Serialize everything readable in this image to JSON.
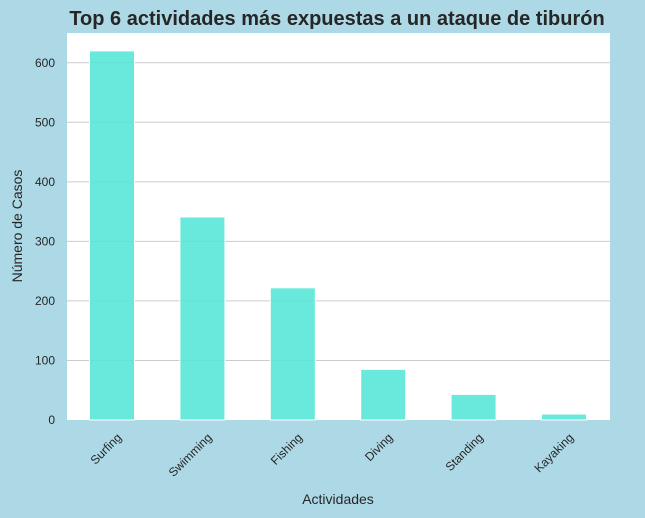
{
  "chart_data": {
    "type": "bar",
    "title": "Top 6 actividades más expuestas a un ataque de tiburón",
    "xlabel": "Actividades",
    "ylabel": "Número de Casos",
    "categories": [
      "Surfing",
      "Swimming",
      "Fishing",
      "Diving",
      "Standing",
      "Kayaking"
    ],
    "values": [
      620,
      341,
      222,
      85,
      43,
      10
    ],
    "ylim": [
      0,
      650
    ],
    "yticks": [
      0,
      100,
      200,
      300,
      400,
      500,
      600
    ],
    "grid": "horizontal",
    "x_tick_rotation": "45deg",
    "bar_color": "#54E6D6",
    "figure_background": "#ADD8E6",
    "plot_background": "#FFFFFF"
  }
}
